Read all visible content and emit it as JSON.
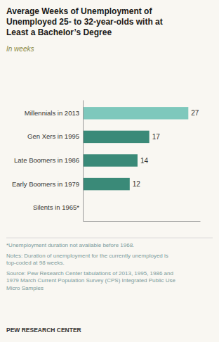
{
  "chart_data": {
    "type": "bar",
    "orientation": "horizontal",
    "title": "Average Weeks of Unemployment of\nUnemployed 25- to 32-year-olds with at\nLeast a Bachelor’s Degree",
    "subtitle": "In weeks",
    "categories": [
      "Millennials in 2013",
      "Gen Xers in 1995",
      "Late Boomers in 1986",
      "Early Boomers in 1979",
      "Silents in 1965*"
    ],
    "values": [
      27,
      17,
      14,
      12,
      null
    ],
    "colors": [
      "#7ec8bc",
      "#3a8a78",
      "#3a8a78",
      "#3a8a78",
      null
    ],
    "xlim": [
      0,
      30
    ],
    "data_labels": true,
    "tick_labels": "y",
    "grid": false,
    "annotations": [
      "*Unemployment duration not available before 1968.",
      "Notes: Duration of unemployment for the currently unemployed is\ntop-coded at 98 weeks.",
      "Source: Pew Research Center tabulations of 2013, 1995, 1986 and\n1979 March Current Population Survey (CPS) Integrated Public Use\nMicro Samples",
      "PEW RESEARCH CENTER"
    ]
  }
}
